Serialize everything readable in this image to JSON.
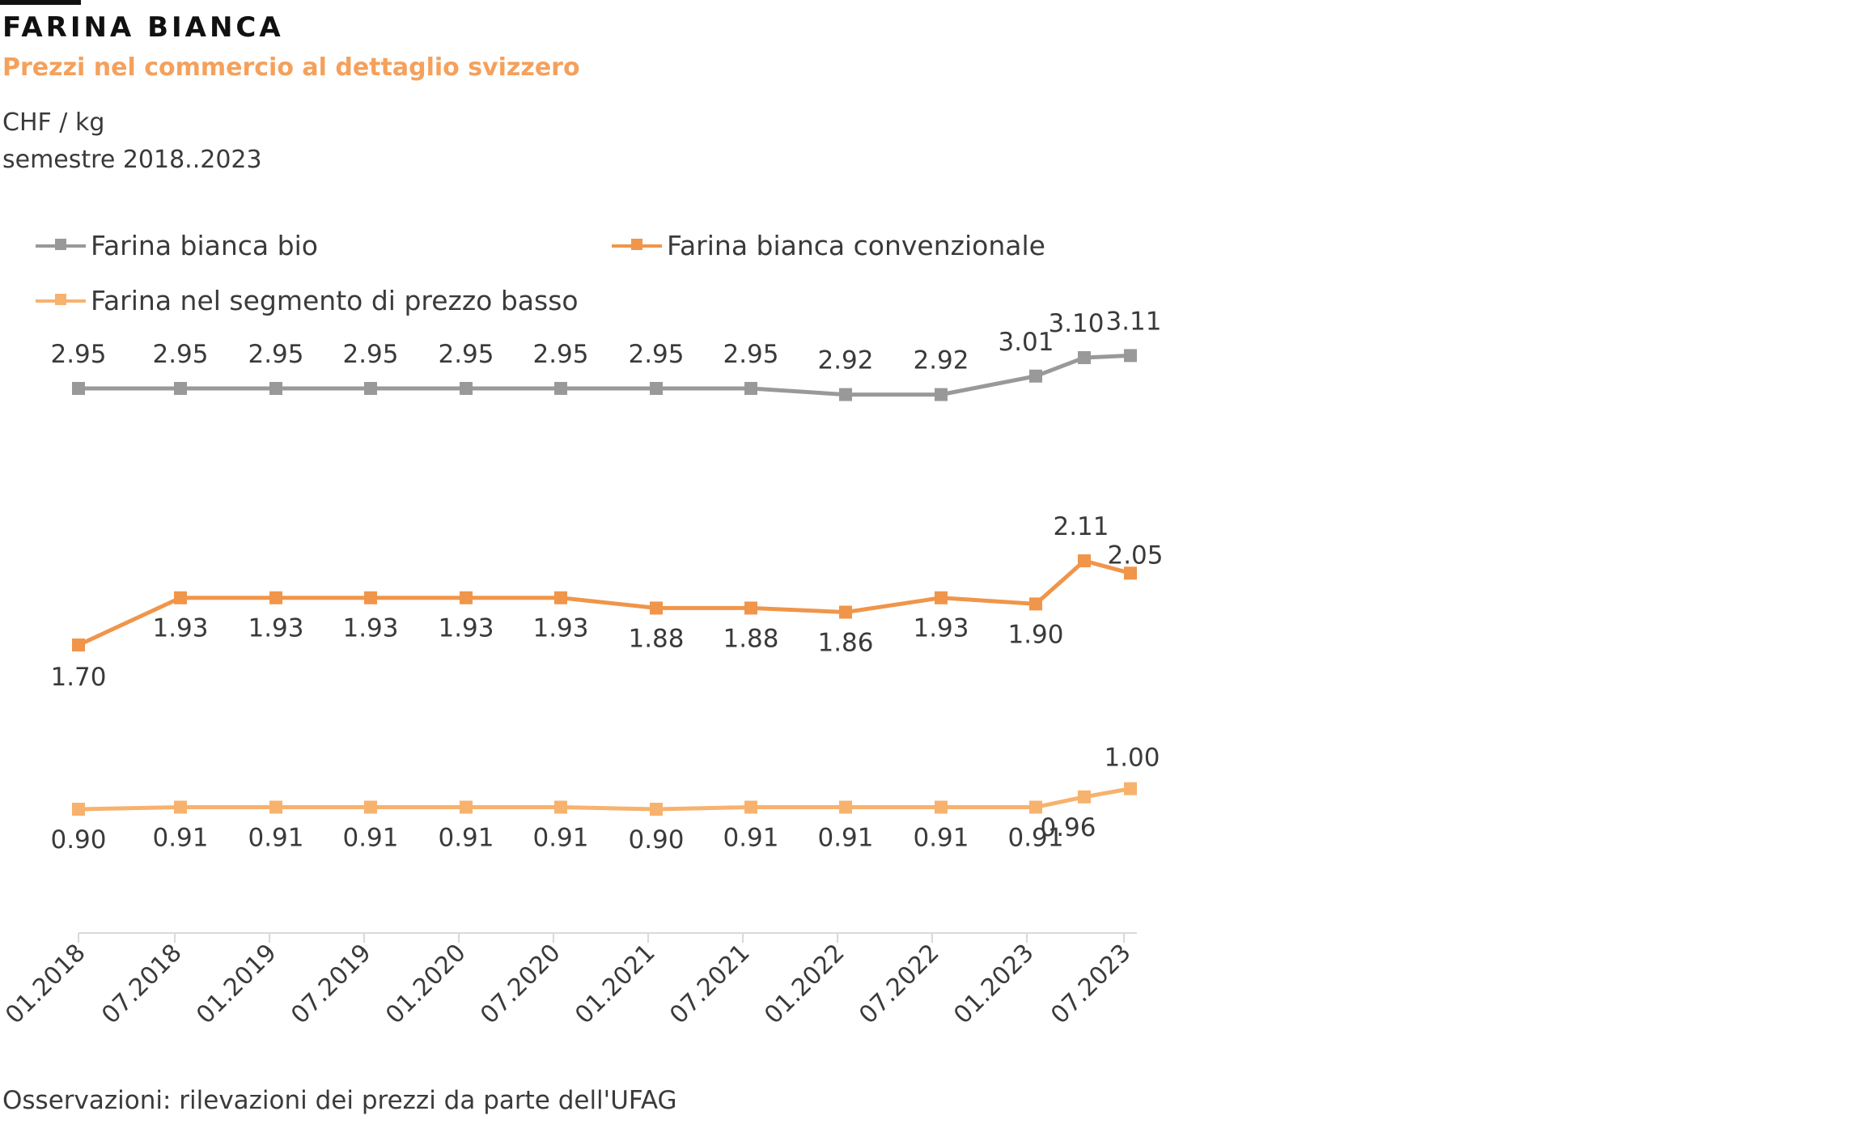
{
  "header": {
    "title": "FARINA BIANCA",
    "subtitle": "Prezzi nel commercio al dettaglio svizzero",
    "unit": "CHF / kg",
    "period": "semestre 2018..2023"
  },
  "footer": {
    "note": "Osservazioni: rilevazioni dei prezzi da parte dell'UFAG"
  },
  "colors": {
    "title": "#111111",
    "accent": "#F5A05B",
    "axis": "#D9D9D9"
  },
  "chart_data": {
    "type": "line",
    "categories": [
      "01.2018",
      "07.2018",
      "01.2019",
      "07.2019",
      "01.2020",
      "07.2020",
      "01.2021",
      "07.2021",
      "01.2022",
      "07.2022",
      "01.2023",
      "",
      "07.2023"
    ],
    "x_tick_labels": [
      "01.2018",
      "07.2018",
      "01.2019",
      "07.2019",
      "01.2020",
      "07.2020",
      "01.2021",
      "07.2021",
      "01.2022",
      "07.2022",
      "01.2023",
      "07.2023"
    ],
    "legend_position": "top-left",
    "grid": false,
    "series": [
      {
        "name": "Farina bianca bio",
        "color": "#999999",
        "values": [
          2.95,
          2.95,
          2.95,
          2.95,
          2.95,
          2.95,
          2.95,
          2.95,
          2.92,
          2.92,
          3.01,
          3.1,
          3.11
        ],
        "labels": [
          "2.95",
          "2.95",
          "2.95",
          "2.95",
          "2.95",
          "2.95",
          "2.95",
          "2.95",
          "2.92",
          "2.92",
          "3.01",
          "3.10",
          "3.11"
        ]
      },
      {
        "name": "Farina bianca convenzionale",
        "color": "#F0954A",
        "values": [
          1.7,
          1.93,
          1.93,
          1.93,
          1.93,
          1.93,
          1.88,
          1.88,
          1.86,
          1.93,
          1.9,
          2.11,
          2.05
        ],
        "labels": [
          "1.70",
          "1.93",
          "1.93",
          "1.93",
          "1.93",
          "1.93",
          "1.88",
          "1.88",
          "1.86",
          "1.93",
          "1.90",
          "2.11",
          "2.05"
        ]
      },
      {
        "name": "Farina nel segmento di prezzo basso",
        "color": "#F7B26E",
        "values": [
          0.9,
          0.91,
          0.91,
          0.91,
          0.91,
          0.91,
          0.9,
          0.91,
          0.91,
          0.91,
          0.91,
          0.96,
          1.0
        ],
        "labels": [
          "0.90",
          "0.91",
          "0.91",
          "0.91",
          "0.91",
          "0.91",
          "0.90",
          "0.91",
          "0.91",
          "0.91",
          "0.91",
          "0.96",
          "1.00"
        ]
      }
    ]
  }
}
